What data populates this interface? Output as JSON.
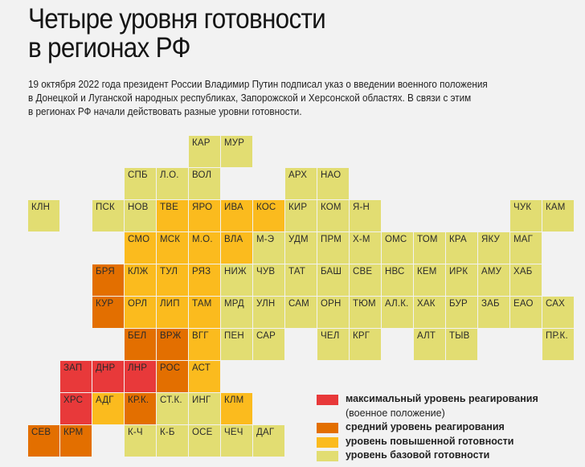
{
  "title": {
    "line1": "Четыре уровня готовности",
    "line2": "в регионах РФ"
  },
  "lead": {
    "line1": "19 октября 2022 года президент России Владимир Путин подписал указ о введении военного положения",
    "line2": "в Донецкой и Луганской народных республиках, Запорожской и Херсонской областях. В связи с этим",
    "line3": "в регионах РФ начали действовать разные уровни готовности."
  },
  "levels": [
    {
      "label": "максимальный уровень реагирования",
      "sublabel": "(военное положение)",
      "color": "#e8393a"
    },
    {
      "label": "средний уровень реагирования",
      "color": "#e36f00"
    },
    {
      "label": "уровень повышенной готовности",
      "color": "#fbbb1e"
    },
    {
      "label": "уровень базовой готовности",
      "color": "#e2dd72"
    }
  ],
  "regions": [
    {
      "label": "КАР",
      "level": 3
    },
    {
      "label": "МУР",
      "level": 3
    },
    {
      "label": "СПБ",
      "level": 3
    },
    {
      "label": "Л.О.",
      "level": 3
    },
    {
      "label": "ВОЛ",
      "level": 3
    },
    {
      "label": "АРХ",
      "level": 3
    },
    {
      "label": "НАО",
      "level": 3
    },
    {
      "label": "КЛН",
      "level": 3
    },
    {
      "label": "ПСК",
      "level": 3
    },
    {
      "label": "НОВ",
      "level": 3
    },
    {
      "label": "ТВЕ",
      "level": 2
    },
    {
      "label": "ЯРО",
      "level": 2
    },
    {
      "label": "ИВА",
      "level": 2
    },
    {
      "label": "КОС",
      "level": 2
    },
    {
      "label": "КИР",
      "level": 3
    },
    {
      "label": "КОМ",
      "level": 3
    },
    {
      "label": "Я-Н",
      "level": 3
    },
    {
      "label": "ЧУК",
      "level": 3
    },
    {
      "label": "КАМ",
      "level": 3
    },
    {
      "label": "СМО",
      "level": 2
    },
    {
      "label": "МСК",
      "level": 2
    },
    {
      "label": "М.О.",
      "level": 2
    },
    {
      "label": "ВЛА",
      "level": 2
    },
    {
      "label": "М-Э",
      "level": 3
    },
    {
      "label": "УДМ",
      "level": 3
    },
    {
      "label": "ПРМ",
      "level": 3
    },
    {
      "label": "Х-М",
      "level": 3
    },
    {
      "label": "ОМС",
      "level": 3
    },
    {
      "label": "ТОМ",
      "level": 3
    },
    {
      "label": "КРА",
      "level": 3
    },
    {
      "label": "ЯКУ",
      "level": 3
    },
    {
      "label": "МАГ",
      "level": 3
    },
    {
      "label": "БРЯ",
      "level": 1
    },
    {
      "label": "КЛЖ",
      "level": 2
    },
    {
      "label": "ТУЛ",
      "level": 2
    },
    {
      "label": "РЯЗ",
      "level": 2
    },
    {
      "label": "НИЖ",
      "level": 3
    },
    {
      "label": "ЧУВ",
      "level": 3
    },
    {
      "label": "ТАТ",
      "level": 3
    },
    {
      "label": "БАШ",
      "level": 3
    },
    {
      "label": "СВЕ",
      "level": 3
    },
    {
      "label": "НВС",
      "level": 3
    },
    {
      "label": "КЕМ",
      "level": 3
    },
    {
      "label": "ИРК",
      "level": 3
    },
    {
      "label": "АМУ",
      "level": 3
    },
    {
      "label": "ХАБ",
      "level": 3
    },
    {
      "label": "КУР",
      "level": 1
    },
    {
      "label": "ОРЛ",
      "level": 2
    },
    {
      "label": "ЛИП",
      "level": 2
    },
    {
      "label": "ТАМ",
      "level": 2
    },
    {
      "label": "МРД",
      "level": 3
    },
    {
      "label": "УЛН",
      "level": 3
    },
    {
      "label": "САМ",
      "level": 3
    },
    {
      "label": "ОРН",
      "level": 3
    },
    {
      "label": "ТЮМ",
      "level": 3
    },
    {
      "label": "АЛ.К.",
      "level": 3
    },
    {
      "label": "ХАК",
      "level": 3
    },
    {
      "label": "БУР",
      "level": 3
    },
    {
      "label": "ЗАБ",
      "level": 3
    },
    {
      "label": "ЕАО",
      "level": 3
    },
    {
      "label": "САХ",
      "level": 3
    },
    {
      "label": "БЕЛ",
      "level": 1
    },
    {
      "label": "ВРЖ",
      "level": 1
    },
    {
      "label": "ВГГ",
      "level": 2
    },
    {
      "label": "ПЕН",
      "level": 3
    },
    {
      "label": "САР",
      "level": 3
    },
    {
      "label": "ЧЕЛ",
      "level": 3
    },
    {
      "label": "КРГ",
      "level": 3
    },
    {
      "label": "АЛТ",
      "level": 3
    },
    {
      "label": "ТЫВ",
      "level": 3
    },
    {
      "label": "ПР.К.",
      "level": 3
    },
    {
      "label": "ЗАП",
      "level": 0
    },
    {
      "label": "ДНР",
      "level": 0
    },
    {
      "label": "ЛНР",
      "level": 0
    },
    {
      "label": "РОС",
      "level": 1
    },
    {
      "label": "АСТ",
      "level": 2
    },
    {
      "label": "ХРС",
      "level": 0
    },
    {
      "label": "АДГ",
      "level": 2
    },
    {
      "label": "КР.К.",
      "level": 1
    },
    {
      "label": "СТ.К.",
      "level": 3
    },
    {
      "label": "ИНГ",
      "level": 3
    },
    {
      "label": "КЛМ",
      "level": 2
    },
    {
      "label": "СЕВ",
      "level": 1
    },
    {
      "label": "КРМ",
      "level": 1
    },
    {
      "label": "К-Ч",
      "level": 3
    },
    {
      "label": "К-Б",
      "level": 3
    },
    {
      "label": "ОСЕ",
      "level": 3
    },
    {
      "label": "ЧЕЧ",
      "level": 3
    },
    {
      "label": "ДАГ",
      "level": 3
    }
  ]
}
